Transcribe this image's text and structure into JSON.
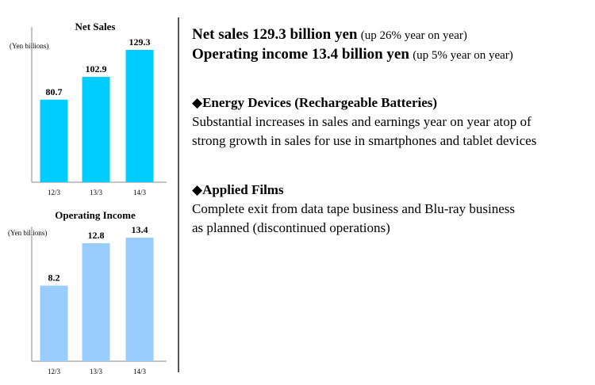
{
  "chart_data": [
    {
      "type": "bar",
      "title": "Net Sales",
      "ylabel": "(Yen billions)",
      "categories": [
        "12/3",
        "13/3",
        "14/3"
      ],
      "values": [
        80.7,
        102.9,
        129.3
      ],
      "value_labels": [
        "80.7",
        "102.9",
        "129.3"
      ],
      "ylim": [
        0,
        129.3
      ],
      "bar_color": "#00ccff",
      "grid": false
    },
    {
      "type": "bar",
      "title": "Operating Income",
      "ylabel": "(Yen billions)",
      "categories": [
        "12/3",
        "13/3",
        "14/3"
      ],
      "values": [
        8.2,
        12.8,
        13.4
      ],
      "value_labels": [
        "8.2",
        "12.8",
        "13.4"
      ],
      "ylim": [
        0,
        13.4
      ],
      "bar_color": "#99ccff",
      "grid": false
    }
  ],
  "summary": {
    "line1_strong": "Net sales 129.3 billion yen",
    "line1_note": "(up 26% year on year)",
    "line2_strong": "Operating income 13.4 billion yen",
    "line2_note": "(up 5% year on year)"
  },
  "sections": [
    {
      "bullet": "◆",
      "heading": "Energy Devices (Rechargeable Batteries)",
      "lines": [
        "Substantial increases in sales and earnings year on year atop of",
        "strong growth in sales for use in smartphones and tablet devices"
      ]
    },
    {
      "bullet": "◆",
      "heading": "Applied Films",
      "lines": [
        "Complete exit from data tape business and Blu-ray business",
        "as planned (discontinued operations)"
      ]
    }
  ]
}
